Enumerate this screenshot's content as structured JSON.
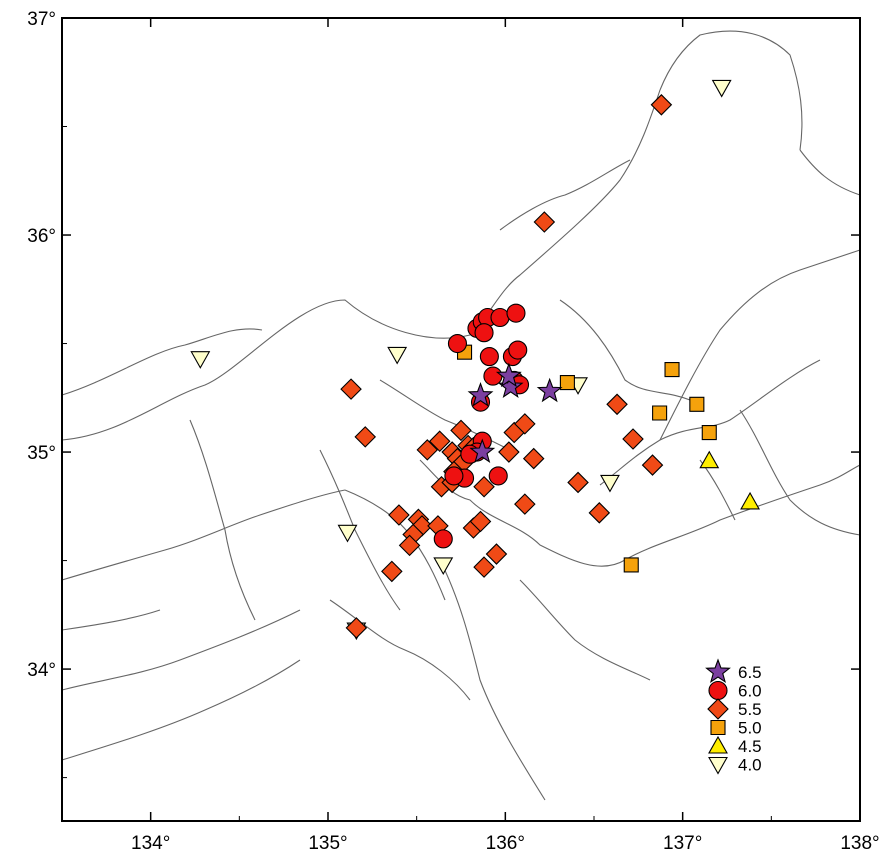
{
  "map": {
    "lon_range": [
      133.5,
      138.0
    ],
    "lat_range": [
      33.3,
      37.0
    ],
    "x_ticks": [
      {
        "value": 134,
        "label": "134°"
      },
      {
        "value": 135,
        "label": "135°"
      },
      {
        "value": 136,
        "label": "136°"
      },
      {
        "value": 137,
        "label": "137°"
      },
      {
        "value": 138,
        "label": "138°"
      }
    ],
    "y_ticks": [
      {
        "value": 34,
        "label": "34°"
      },
      {
        "value": 35,
        "label": "35°"
      },
      {
        "value": 36,
        "label": "36°"
      },
      {
        "value": 37,
        "label": "37°"
      }
    ]
  },
  "legend": [
    {
      "label": "6.5",
      "symbol": "star",
      "color": "#7b3fa0"
    },
    {
      "label": "6.0",
      "symbol": "circle",
      "color": "#ee1111"
    },
    {
      "label": "5.5",
      "symbol": "diamond",
      "color": "#f04a16"
    },
    {
      "label": "5.0",
      "symbol": "square",
      "color": "#f5a20c"
    },
    {
      "label": "4.5",
      "symbol": "triangle-up",
      "color": "#ffee00"
    },
    {
      "label": "4.0",
      "symbol": "triangle-down",
      "color": "#ffffcc"
    }
  ],
  "chart_data": {
    "type": "scatter",
    "x_axis": "longitude",
    "y_axis": "latitude",
    "series": [
      {
        "name": "6.5",
        "symbol": "star",
        "points": [
          [
            135.86,
            35.26
          ],
          [
            136.03,
            35.3
          ],
          [
            136.25,
            35.28
          ],
          [
            135.87,
            35.0
          ],
          [
            136.02,
            35.35
          ]
        ]
      },
      {
        "name": "6.0",
        "symbol": "circle",
        "points": [
          [
            135.73,
            35.5
          ],
          [
            135.84,
            35.57
          ],
          [
            135.87,
            35.6
          ],
          [
            135.9,
            35.62
          ],
          [
            135.97,
            35.62
          ],
          [
            136.06,
            35.64
          ],
          [
            135.88,
            35.55
          ],
          [
            135.91,
            35.44
          ],
          [
            136.04,
            35.44
          ],
          [
            136.07,
            35.47
          ],
          [
            135.93,
            35.35
          ],
          [
            136.05,
            35.33
          ],
          [
            136.08,
            35.31
          ],
          [
            135.86,
            35.23
          ],
          [
            135.87,
            35.05
          ],
          [
            135.84,
            35.0
          ],
          [
            135.8,
            34.99
          ],
          [
            135.77,
            34.88
          ],
          [
            135.71,
            34.89
          ],
          [
            135.96,
            34.89
          ],
          [
            135.65,
            34.6
          ]
        ]
      },
      {
        "name": "5.5",
        "symbol": "diamond",
        "points": [
          [
            136.88,
            36.6
          ],
          [
            136.22,
            36.06
          ],
          [
            135.13,
            35.29
          ],
          [
            135.21,
            35.07
          ],
          [
            135.56,
            35.01
          ],
          [
            135.63,
            35.05
          ],
          [
            135.7,
            35.0
          ],
          [
            135.75,
            35.1
          ],
          [
            135.79,
            35.03
          ],
          [
            135.82,
            35.02
          ],
          [
            135.73,
            34.97
          ],
          [
            135.76,
            34.95
          ],
          [
            135.71,
            34.91
          ],
          [
            135.64,
            34.84
          ],
          [
            135.7,
            34.86
          ],
          [
            136.05,
            35.09
          ],
          [
            136.11,
            35.13
          ],
          [
            136.02,
            35.0
          ],
          [
            136.16,
            34.97
          ],
          [
            135.88,
            34.84
          ],
          [
            136.11,
            34.76
          ],
          [
            136.41,
            34.86
          ],
          [
            136.53,
            34.72
          ],
          [
            136.63,
            35.22
          ],
          [
            136.72,
            35.06
          ],
          [
            136.83,
            34.94
          ],
          [
            135.4,
            34.71
          ],
          [
            135.51,
            34.69
          ],
          [
            135.53,
            34.66
          ],
          [
            135.48,
            34.62
          ],
          [
            135.46,
            34.57
          ],
          [
            135.62,
            34.66
          ],
          [
            135.82,
            34.65
          ],
          [
            135.86,
            34.68
          ],
          [
            135.95,
            34.53
          ],
          [
            135.88,
            34.47
          ],
          [
            135.36,
            34.45
          ],
          [
            135.16,
            34.19
          ]
        ]
      },
      {
        "name": "5.0",
        "symbol": "square",
        "points": [
          [
            135.77,
            35.46
          ],
          [
            136.35,
            35.32
          ],
          [
            136.94,
            35.38
          ],
          [
            136.87,
            35.18
          ],
          [
            137.08,
            35.22
          ],
          [
            137.15,
            35.09
          ],
          [
            136.71,
            34.48
          ]
        ]
      },
      {
        "name": "4.5",
        "symbol": "triangle-up",
        "points": [
          [
            137.15,
            34.96
          ],
          [
            137.38,
            34.77
          ]
        ]
      },
      {
        "name": "4.0",
        "symbol": "triangle-down",
        "points": [
          [
            137.22,
            36.68
          ],
          [
            134.28,
            35.43
          ],
          [
            135.39,
            35.45
          ],
          [
            135.11,
            34.63
          ],
          [
            135.65,
            34.48
          ],
          [
            136.41,
            35.31
          ],
          [
            136.59,
            34.86
          ],
          [
            135.16,
            34.18
          ]
        ]
      }
    ]
  }
}
